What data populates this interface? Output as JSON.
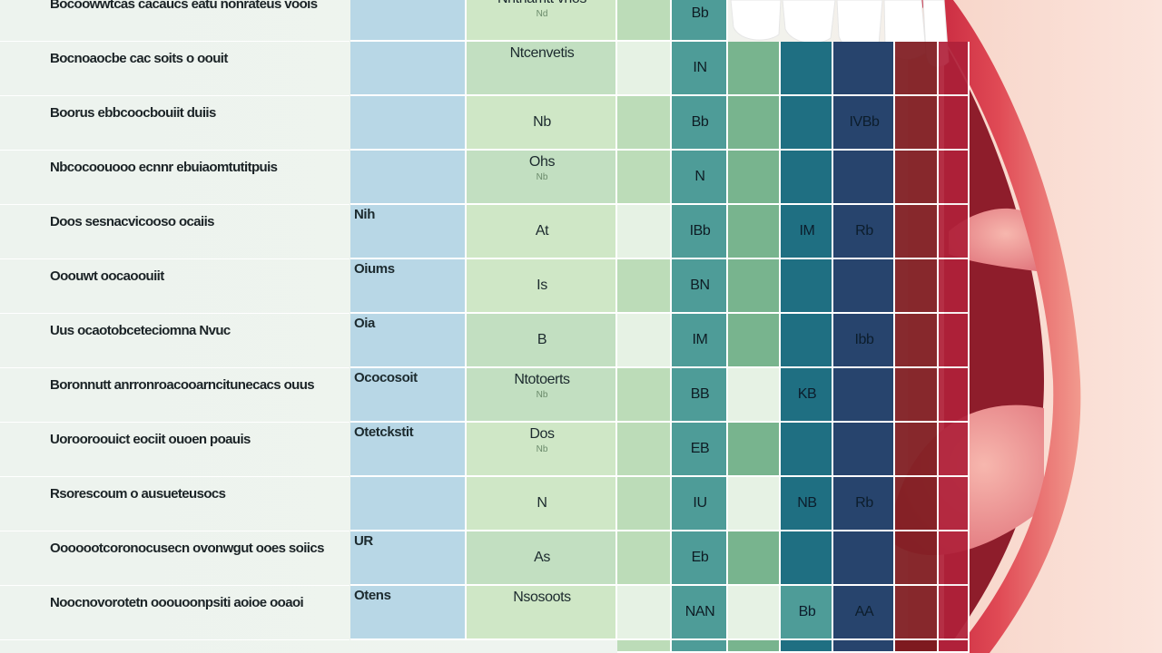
{
  "chart_data": {
    "type": "table",
    "title": "",
    "rows": [
      {
        "label": "Bocoowwtcas cacaucs eatu nonrateus voois",
        "cells": {
          "c2": "",
          "c3": "Nhtnamtt vnos",
          "c3sub": "Nd",
          "c5": "Bb"
        }
      },
      {
        "label": "Bocnoaocbe cac soits o oouit",
        "cells": {
          "c2": "",
          "c3": "Ntcenvetis",
          "c3sub": "",
          "c5": "IN"
        }
      },
      {
        "label": "Boorus ebbcoocbouiit duiis",
        "cells": {
          "c2": "",
          "c3": "Nb",
          "c3sub": "",
          "c5": "Bb",
          "c8": "IVBb"
        }
      },
      {
        "label": "Nbcocoouooo ecnnr ebuiaomtutitpuis",
        "cells": {
          "c2": "",
          "c3": "Ohs",
          "c3sub": "Nb",
          "c5": "N"
        }
      },
      {
        "label": "Doos sesnacvicooso ocaiis",
        "cells": {
          "c2": "Nih",
          "c3": "At",
          "c3sub": "",
          "c5": "IBb",
          "c7": "IM",
          "c8": "Rb"
        }
      },
      {
        "label": "Ooouwt oocaoouiit",
        "cells": {
          "c2": "Oiums",
          "c3": "Is",
          "c3sub": "",
          "c5": "BN"
        }
      },
      {
        "label": "Uus ocaotobceteciomna Nvuc",
        "cells": {
          "c2": "Oia",
          "c3": "B",
          "c3sub": "",
          "c5": "IM",
          "c8": "Ibb"
        }
      },
      {
        "label": "Boronnutt anrronroacooarncitunecacs ouus",
        "cells": {
          "c2": "Ococosoit",
          "c3": "Ntotoerts",
          "c3sub": "Nb",
          "c5": "BB",
          "c7": "KB"
        }
      },
      {
        "label": "Uorooroouict eociit ouoen poauis",
        "cells": {
          "c2": "Otetckstit",
          "c3": "Dos",
          "c3sub": "Nb",
          "c5": "EB"
        }
      },
      {
        "label": "Rsorescoum o ausueteusocs",
        "cells": {
          "c2": "",
          "c3": "N",
          "c3sub": "",
          "c5": "IU",
          "c7": "NB",
          "c8": "Rb"
        }
      },
      {
        "label": "Ooooootcoronocusecn ovonwgut ooes soiics",
        "cells": {
          "c2": "UR",
          "c3": "As",
          "c3sub": "",
          "c5": "Eb"
        }
      },
      {
        "label": "Noocnovorotetn ooouoonpsiti aoioe ooaoi",
        "cells": {
          "c2": "Otens",
          "c3": "Nsosoots",
          "c3sub": "",
          "c5": "NAN",
          "c7": "Bb",
          "c8": "AA"
        }
      }
    ]
  },
  "colors": {
    "blue": "#b8d7e6",
    "green_a": "#cfe7c6",
    "green_b": "#c2dfc1",
    "green_c": "#bcdcb8",
    "pale": "#e6f2e4",
    "teal": "#4e9c98",
    "mid_green": "#78b48e",
    "deep_teal": "#1f6f82",
    "navy": "#27446d",
    "dark_red": "#7e1a1f",
    "crimson": "#b0213a"
  }
}
